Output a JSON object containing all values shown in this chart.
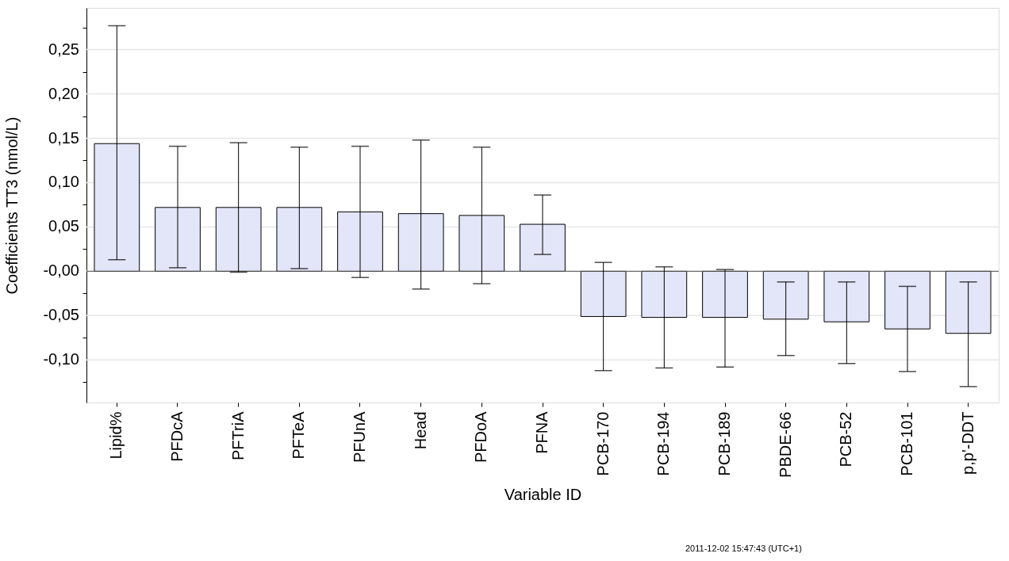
{
  "chart_data": {
    "type": "bar",
    "xlabel": "Variable ID",
    "ylabel": "Coefficients TT3 (nmol/L)",
    "categories": [
      "Lipid%",
      "PFDcA",
      "PFTriA",
      "PFTeA",
      "PFUnA",
      "Head",
      "PFDoA",
      "PFNA",
      "PCB-170",
      "PCB-194",
      "PCB-189",
      "PBDE-66",
      "PCB-52",
      "PCB-101",
      "p,p'-DDT"
    ],
    "values": [
      0.144,
      0.072,
      0.072,
      0.072,
      0.067,
      0.065,
      0.063,
      0.053,
      -0.051,
      -0.052,
      -0.052,
      -0.054,
      -0.057,
      -0.065,
      -0.07
    ],
    "errors": [
      [
        0.013,
        0.277
      ],
      [
        0.004,
        0.141
      ],
      [
        -0.001,
        0.145
      ],
      [
        0.003,
        0.14
      ],
      [
        -0.007,
        0.141
      ],
      [
        -0.02,
        0.148
      ],
      [
        -0.014,
        0.14
      ],
      [
        0.019,
        0.086
      ],
      [
        -0.112,
        0.01
      ],
      [
        -0.109,
        0.005
      ],
      [
        -0.108,
        0.002
      ],
      [
        -0.095,
        -0.012
      ],
      [
        -0.104,
        -0.012
      ],
      [
        -0.113,
        -0.017
      ],
      [
        -0.13,
        -0.012
      ]
    ],
    "color": "#e3e5f8",
    "ylim": [
      -0.148,
      0.297
    ],
    "yticks": [
      {
        "value": -0.125,
        "label": null
      },
      {
        "value": -0.1,
        "label": "-0,10"
      },
      {
        "value": -0.075,
        "label": null
      },
      {
        "value": -0.05,
        "label": "-0,05"
      },
      {
        "value": -0.025,
        "label": null
      },
      {
        "value": 0,
        "label": "-0,00"
      },
      {
        "value": 0.025,
        "label": null
      },
      {
        "value": 0.05,
        "label": "0,05"
      },
      {
        "value": 0.075,
        "label": null
      },
      {
        "value": 0.1,
        "label": "0,10"
      },
      {
        "value": 0.125,
        "label": null
      },
      {
        "value": 0.15,
        "label": "0,15"
      },
      {
        "value": 0.175,
        "label": null
      },
      {
        "value": 0.2,
        "label": "0,20"
      },
      {
        "value": 0.225,
        "label": null
      },
      {
        "value": 0.25,
        "label": "0,25"
      },
      {
        "value": 0.275,
        "label": null
      }
    ],
    "grid": "y",
    "annotations": [
      "2011-12-02 15:47:43 (UTC+1)"
    ]
  }
}
